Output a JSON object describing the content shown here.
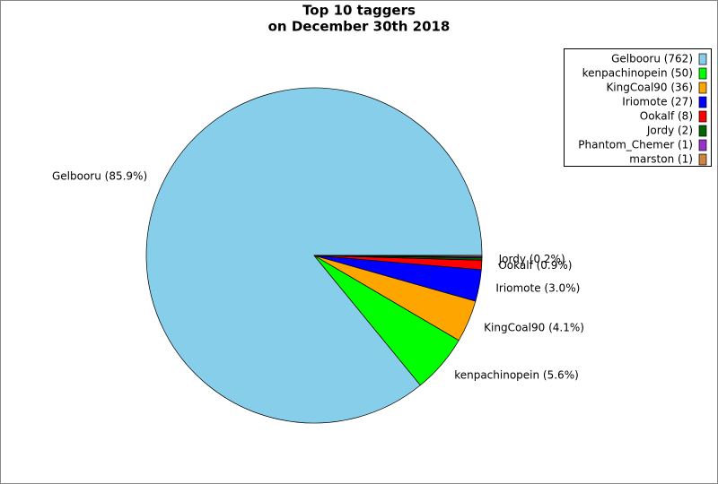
{
  "chart_data": {
    "type": "pie",
    "title": [
      "Top 10 taggers",
      "on December 30th 2018"
    ],
    "categories": [
      "Gelbooru",
      "kenpachinopein",
      "KingCoal90",
      "Iriomote",
      "Ookalf",
      "Jordy",
      "Phantom_Chemer",
      "marston"
    ],
    "values": [
      762,
      50,
      36,
      27,
      8,
      2,
      1,
      1
    ],
    "value_labels": [
      "Gelbooru (85.9%)",
      "kenpachinopein (5.6%)",
      "KingCoal90 (4.1%)",
      "Iriomote (3.0%)",
      "Ookalf (0.9%)",
      "Jordy (0.2%)",
      null,
      null
    ],
    "legend_labels": [
      "Gelbooru (762)",
      "kenpachinopein (50)",
      "KingCoal90 (36)",
      "Iriomote (27)",
      "Ookalf (8)",
      "Jordy (2)",
      "Phantom_Chemer (1)",
      "marston (1)"
    ],
    "colors": [
      "#87ceeb",
      "#00ff00",
      "#ffa500",
      "#0000ff",
      "#ff0000",
      "#006400",
      "#9932cc",
      "#cd853f"
    ],
    "legend": "upper right"
  }
}
